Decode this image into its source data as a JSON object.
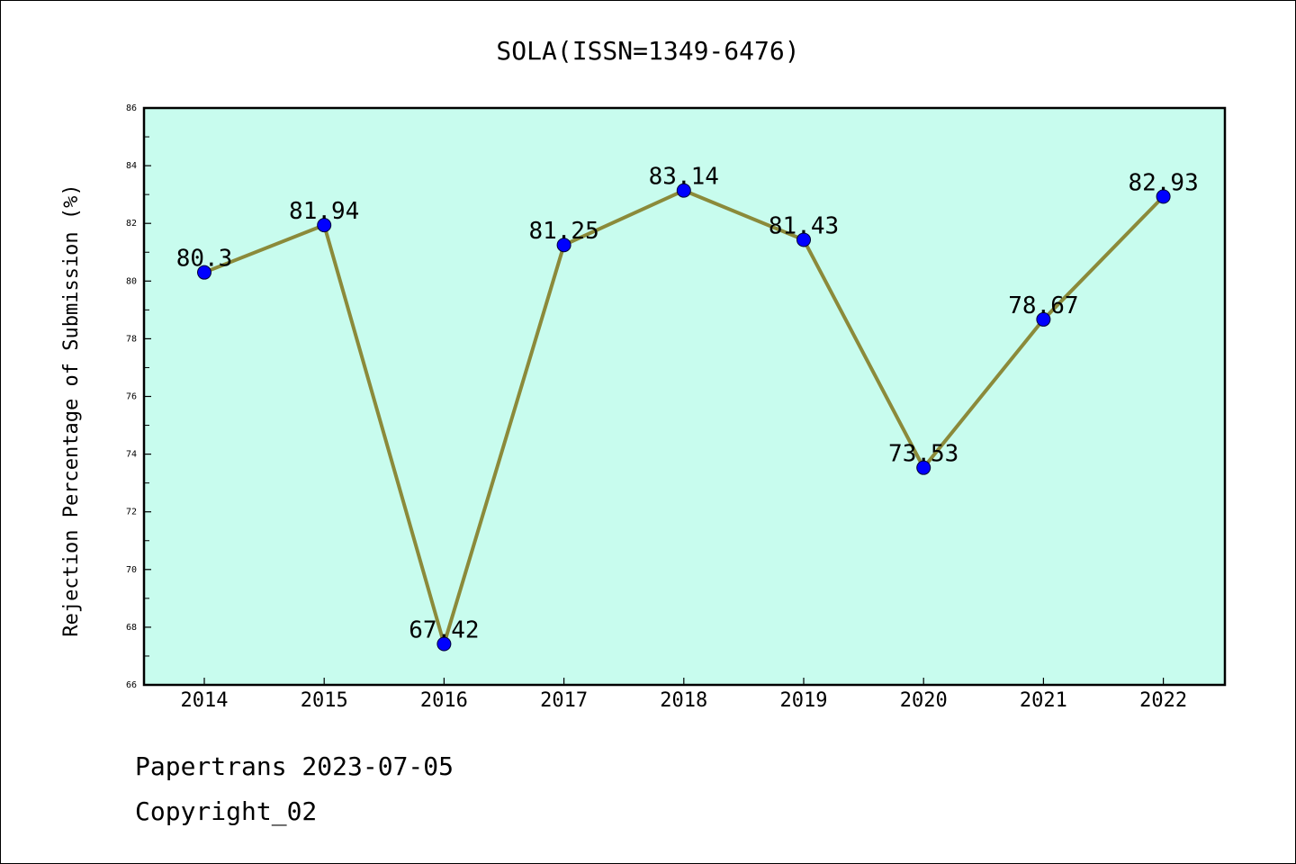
{
  "chart_data": {
    "type": "line",
    "title": "SOLA(ISSN=1349-6476)",
    "xlabel": "",
    "ylabel": "Rejection Percentage of Submission (%)",
    "categories": [
      "2014",
      "2015",
      "2016",
      "2017",
      "2018",
      "2019",
      "2020",
      "2021",
      "2022"
    ],
    "values": [
      80.3,
      81.94,
      67.42,
      81.25,
      83.14,
      81.43,
      73.53,
      78.67,
      82.93
    ],
    "data_labels": [
      "80.3",
      "81.94",
      "67.42",
      "81.25",
      "83.14",
      "81.43",
      "73.53",
      "78.67",
      "82.93"
    ],
    "ylim": [
      66,
      86
    ],
    "y_ticks": [
      66,
      68,
      70,
      72,
      74,
      76,
      78,
      80,
      82,
      84,
      86
    ],
    "grid": false,
    "colors": {
      "plot_background": "#c8fcee",
      "line": "#8b8a3a",
      "marker": "#0000ff"
    }
  },
  "footer": {
    "line1": "Papertrans 2023-07-05",
    "line2": "Copyright_02"
  }
}
